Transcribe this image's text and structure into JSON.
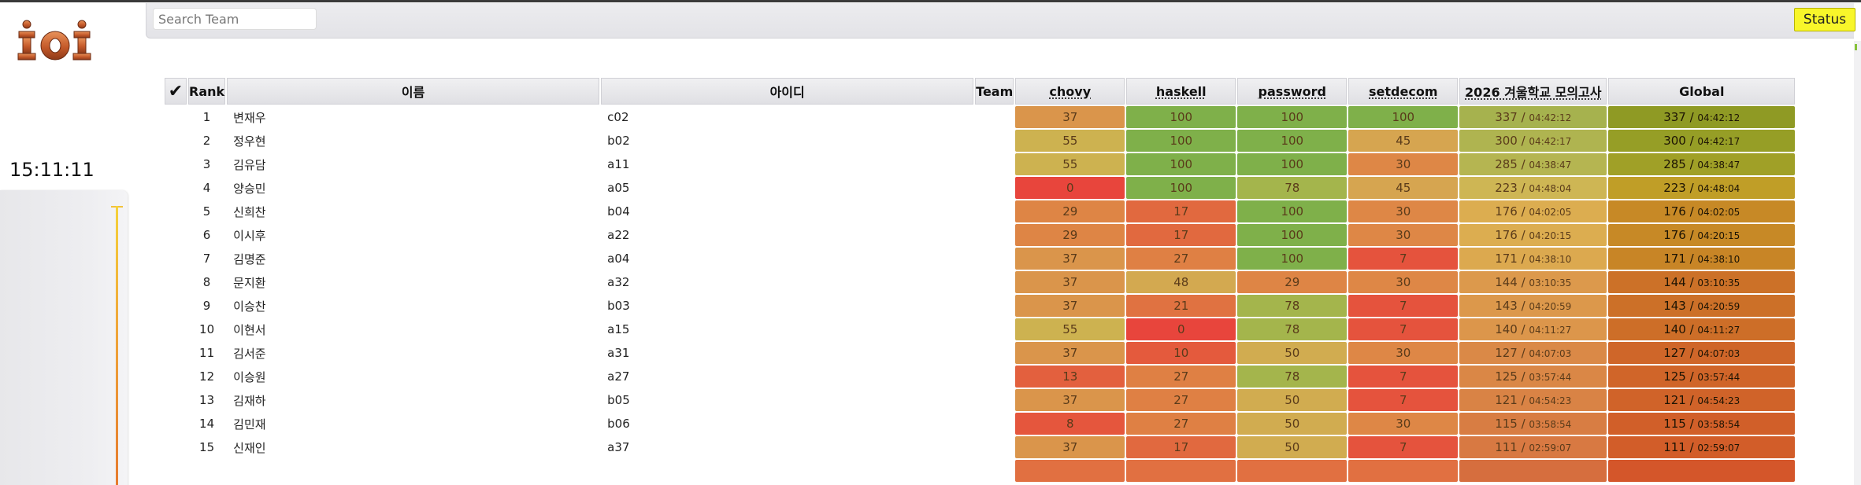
{
  "header": {
    "logo_text": "ioi",
    "search_placeholder": "Search Team",
    "status_label": "Status"
  },
  "clock": "15:11:11",
  "table": {
    "columns": {
      "check": "✔",
      "rank": "Rank",
      "name": "이름",
      "id": "아이디",
      "team": "Team",
      "tasks": [
        "chovy",
        "haskell",
        "password",
        "setdecom"
      ],
      "contest": "2026 겨울학교 모의고사",
      "global": "Global"
    },
    "rows": [
      {
        "rank": "1",
        "name": "변재우",
        "id": "c02",
        "team": "",
        "scores": [
          "37",
          "100",
          "100",
          "100"
        ],
        "total": "337",
        "total_time": "04:42:12",
        "global": "337",
        "global_time": "04:42:12"
      },
      {
        "rank": "2",
        "name": "정우현",
        "id": "b02",
        "team": "",
        "scores": [
          "55",
          "100",
          "100",
          "45"
        ],
        "total": "300",
        "total_time": "04:42:17",
        "global": "300",
        "global_time": "04:42:17"
      },
      {
        "rank": "3",
        "name": "김유담",
        "id": "a11",
        "team": "",
        "scores": [
          "55",
          "100",
          "100",
          "30"
        ],
        "total": "285",
        "total_time": "04:38:47",
        "global": "285",
        "global_time": "04:38:47"
      },
      {
        "rank": "4",
        "name": "양승민",
        "id": "a05",
        "team": "",
        "scores": [
          "0",
          "100",
          "78",
          "45"
        ],
        "total": "223",
        "total_time": "04:48:04",
        "global": "223",
        "global_time": "04:48:04"
      },
      {
        "rank": "5",
        "name": "신희찬",
        "id": "b04",
        "team": "",
        "scores": [
          "29",
          "17",
          "100",
          "30"
        ],
        "total": "176",
        "total_time": "04:02:05",
        "global": "176",
        "global_time": "04:02:05"
      },
      {
        "rank": "6",
        "name": "이시후",
        "id": "a22",
        "team": "",
        "scores": [
          "29",
          "17",
          "100",
          "30"
        ],
        "total": "176",
        "total_time": "04:20:15",
        "global": "176",
        "global_time": "04:20:15"
      },
      {
        "rank": "7",
        "name": "김명준",
        "id": "a04",
        "team": "",
        "scores": [
          "37",
          "27",
          "100",
          "7"
        ],
        "total": "171",
        "total_time": "04:38:10",
        "global": "171",
        "global_time": "04:38:10"
      },
      {
        "rank": "8",
        "name": "문지환",
        "id": "a32",
        "team": "",
        "scores": [
          "37",
          "48",
          "29",
          "30"
        ],
        "total": "144",
        "total_time": "03:10:35",
        "global": "144",
        "global_time": "03:10:35"
      },
      {
        "rank": "9",
        "name": "이승찬",
        "id": "b03",
        "team": "",
        "scores": [
          "37",
          "21",
          "78",
          "7"
        ],
        "total": "143",
        "total_time": "04:20:59",
        "global": "143",
        "global_time": "04:20:59"
      },
      {
        "rank": "10",
        "name": "이현서",
        "id": "a15",
        "team": "",
        "scores": [
          "55",
          "0",
          "78",
          "7"
        ],
        "total": "140",
        "total_time": "04:11:27",
        "global": "140",
        "global_time": "04:11:27"
      },
      {
        "rank": "11",
        "name": "김서준",
        "id": "a31",
        "team": "",
        "scores": [
          "37",
          "10",
          "50",
          "30"
        ],
        "total": "127",
        "total_time": "04:07:03",
        "global": "127",
        "global_time": "04:07:03"
      },
      {
        "rank": "12",
        "name": "이승원",
        "id": "a27",
        "team": "",
        "scores": [
          "13",
          "27",
          "78",
          "7"
        ],
        "total": "125",
        "total_time": "03:57:44",
        "global": "125",
        "global_time": "03:57:44"
      },
      {
        "rank": "13",
        "name": "김재하",
        "id": "b05",
        "team": "",
        "scores": [
          "37",
          "27",
          "50",
          "7"
        ],
        "total": "121",
        "total_time": "04:54:23",
        "global": "121",
        "global_time": "04:54:23"
      },
      {
        "rank": "14",
        "name": "김민재",
        "id": "b06",
        "team": "",
        "scores": [
          "8",
          "27",
          "50",
          "30"
        ],
        "total": "115",
        "total_time": "03:58:54",
        "global": "115",
        "global_time": "03:58:54"
      },
      {
        "rank": "15",
        "name": "신재인",
        "id": "a37",
        "team": "",
        "scores": [
          "37",
          "17",
          "50",
          "7"
        ],
        "total": "111",
        "total_time": "02:59:07",
        "global": "111",
        "global_time": "02:59:07"
      },
      {
        "rank": "",
        "name": "",
        "id": "",
        "team": "",
        "scores": [
          "",
          "",
          "",
          ""
        ],
        "total": "",
        "total_time": "",
        "global": "",
        "global_time": ""
      }
    ],
    "max_task_score": 100,
    "max_total": 400
  },
  "colors": {
    "status_button": "#f8f62a",
    "score_low": "#e8453c",
    "score_high": "#7fb04a",
    "global_high": "#8e9a24",
    "global_low": "#d4562a"
  }
}
